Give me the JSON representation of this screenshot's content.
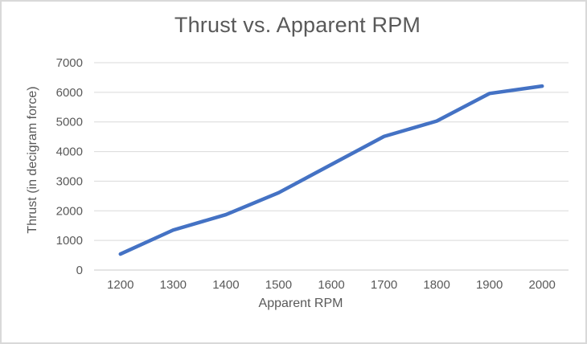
{
  "window": {
    "background_color": "#ffffff",
    "border_color": "#d9d9d9"
  },
  "chart_data": {
    "type": "line",
    "title": "Thrust vs. Apparent RPM",
    "xlabel": "Apparent RPM",
    "ylabel": "Thrust (in decigram force)",
    "categories": [
      1200,
      1300,
      1400,
      1500,
      1600,
      1700,
      1800,
      1900,
      2000
    ],
    "series": [
      {
        "name": "Thrust",
        "values": [
          540,
          1350,
          1870,
          2610,
          3560,
          4510,
          5030,
          5960,
          6210
        ],
        "color": "#4472C4",
        "stroke_width": 4.5
      }
    ],
    "ylim": [
      0,
      7000
    ],
    "ytick_step": 1000,
    "yticks": [
      0,
      1000,
      2000,
      3000,
      4000,
      5000,
      6000,
      7000
    ],
    "grid": true,
    "legend": "none",
    "text_color": "#595959",
    "gridline_color": "#d9d9d9",
    "axis_line_color": "#c9c9c9"
  }
}
